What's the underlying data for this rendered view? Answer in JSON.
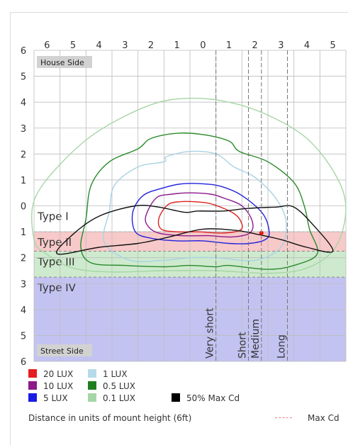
{
  "chart_data": {
    "type": "isolux",
    "x_ticks": [
      "6",
      "5",
      "4",
      "3",
      "2",
      "1",
      "0",
      "1",
      "2",
      "3",
      "4",
      "5"
    ],
    "y_ticks": [
      "6",
      "5",
      "4",
      "3",
      "2",
      "1",
      "0",
      "1",
      "2",
      "3",
      "4",
      "5",
      "6"
    ],
    "xlim": [
      -6,
      6
    ],
    "ylim": [
      -6,
      6
    ],
    "grid": true,
    "house_side_label": "House Side",
    "street_side_label": "Street Side",
    "type_bands": [
      {
        "label": "Type I",
        "from": 0,
        "to": 1,
        "color": ""
      },
      {
        "label": "Type II",
        "from": 1,
        "to": 1.75,
        "color": "#f7c0c0"
      },
      {
        "label": "Type III",
        "from": 1.75,
        "to": 2.75,
        "color": "#c6e6c6"
      },
      {
        "label": "Type IV",
        "from": 2.75,
        "to": 6,
        "color": "#b8b8f0"
      }
    ],
    "length_lines": [
      {
        "label": "Very short",
        "x": 1
      },
      {
        "label": "Short",
        "x": 2.25
      },
      {
        "label": "Medium",
        "x": 2.75
      },
      {
        "label": "Long",
        "x": 3.75
      }
    ],
    "max_cd_point": [
      2.75,
      1.05
    ],
    "series": [
      {
        "name": "0.1 LUX",
        "color": "#a5d6a5",
        "points": [
          [
            -6,
            -0.2
          ],
          [
            -5,
            -1.6
          ],
          [
            -3.5,
            -2.9
          ],
          [
            -1.5,
            -3.9
          ],
          [
            0,
            -4.15
          ],
          [
            1.5,
            -4.0
          ],
          [
            3,
            -3.5
          ],
          [
            4.5,
            -2.6
          ],
          [
            5.6,
            -1.2
          ],
          [
            6,
            0.1
          ],
          [
            5.6,
            1.6
          ],
          [
            4.5,
            2.4
          ],
          [
            3,
            2.6
          ],
          [
            1,
            2.5
          ],
          [
            -1,
            2.5
          ],
          [
            -3,
            2.55
          ],
          [
            -4.5,
            2.4
          ],
          [
            -5.6,
            1.8
          ],
          [
            -6,
            1.3
          ]
        ]
      },
      {
        "name": "0.5 LUX",
        "color": "#2a8a2a",
        "points": [
          [
            -4.2,
            1.6
          ],
          [
            -4,
            0.5
          ],
          [
            -3.8,
            -0.8
          ],
          [
            -3.1,
            -1.7
          ],
          [
            -2,
            -2.2
          ],
          [
            -1.5,
            -2.6
          ],
          [
            -0.5,
            -2.8
          ],
          [
            0.5,
            -2.75
          ],
          [
            1.5,
            -2.5
          ],
          [
            1.9,
            -2.1
          ],
          [
            3,
            -1.7
          ],
          [
            4,
            -0.9
          ],
          [
            4.4,
            0
          ],
          [
            4.6,
            0.9
          ],
          [
            4.9,
            1.85
          ],
          [
            4,
            2.3
          ],
          [
            3,
            2.45
          ],
          [
            1.5,
            2.3
          ],
          [
            1,
            2.35
          ],
          [
            0,
            2.3
          ],
          [
            -1,
            2.35
          ],
          [
            -2.5,
            2.3
          ],
          [
            -3.8,
            2.2
          ]
        ]
      },
      {
        "name": "1 LUX",
        "color": "#a8d2e4",
        "points": [
          [
            -3.3,
            1.4
          ],
          [
            -3.1,
            0.2
          ],
          [
            -2.9,
            -0.8
          ],
          [
            -2,
            -1.5
          ],
          [
            -1,
            -1.7
          ],
          [
            -0.9,
            -1.9
          ],
          [
            0,
            -2.1
          ],
          [
            1,
            -2
          ],
          [
            1.7,
            -1.5
          ],
          [
            2.5,
            -1.1
          ],
          [
            3.3,
            -0.3
          ],
          [
            3.7,
            0.6
          ],
          [
            3.5,
            1.6
          ],
          [
            2.5,
            2.1
          ],
          [
            1,
            2
          ],
          [
            0,
            2
          ],
          [
            -1,
            2.1
          ],
          [
            -2.3,
            2.1
          ]
        ]
      },
      {
        "name": "5 LUX",
        "color": "#2222dd",
        "points": [
          [
            -2.2,
            0.25
          ],
          [
            -1.8,
            -0.4
          ],
          [
            -1,
            -0.7
          ],
          [
            -0.3,
            -0.85
          ],
          [
            0.5,
            -0.85
          ],
          [
            1.2,
            -0.75
          ],
          [
            2,
            -0.4
          ],
          [
            2.8,
            0.3
          ],
          [
            3.05,
            1
          ],
          [
            2.9,
            1.3
          ],
          [
            2.3,
            1.45
          ],
          [
            1.5,
            1.45
          ],
          [
            0.5,
            1.35
          ],
          [
            -0.5,
            1.35
          ],
          [
            -1.5,
            1.25
          ],
          [
            -2.1,
            1
          ]
        ]
      },
      {
        "name": "10 LUX",
        "color": "#8b1a8b",
        "points": [
          [
            -1.7,
            0.4
          ],
          [
            -1.3,
            -0.3
          ],
          [
            -0.7,
            -0.45
          ],
          [
            0,
            -0.5
          ],
          [
            0.8,
            -0.45
          ],
          [
            1.3,
            -0.3
          ],
          [
            2,
            0
          ],
          [
            2.4,
            0.6
          ],
          [
            2.3,
            1.05
          ],
          [
            1.6,
            1.2
          ],
          [
            0.7,
            1.15
          ],
          [
            -0.3,
            1.15
          ],
          [
            -1.2,
            1.05
          ],
          [
            -1.6,
            0.8
          ]
        ]
      },
      {
        "name": "20 LUX",
        "color": "#dd2222",
        "points": [
          [
            -1.2,
            0.5
          ],
          [
            -0.9,
            0
          ],
          [
            -0.5,
            -0.15
          ],
          [
            0.3,
            -0.15
          ],
          [
            0.9,
            -0.05
          ],
          [
            1.7,
            0.3
          ],
          [
            2,
            0.7
          ],
          [
            1.9,
            0.95
          ],
          [
            1.2,
            1.05
          ],
          [
            0.3,
            1
          ],
          [
            -0.5,
            1
          ],
          [
            -1.1,
            0.9
          ]
        ]
      },
      {
        "name": "50% Max Cd",
        "color": "#111111",
        "points": [
          [
            -5.1,
            1.85
          ],
          [
            -4.5,
            1.1
          ],
          [
            -3.5,
            0.4
          ],
          [
            -2.1,
            0
          ],
          [
            -1.2,
            0.05
          ],
          [
            -0.2,
            0.25
          ],
          [
            0.3,
            0.2
          ],
          [
            1.3,
            0.2
          ],
          [
            2.2,
            0.1
          ],
          [
            3.3,
            0.05
          ],
          [
            4,
            0.05
          ],
          [
            4.8,
            0.8
          ],
          [
            5.5,
            1.75
          ],
          [
            4.5,
            1.6
          ],
          [
            3.5,
            1.3
          ],
          [
            2.6,
            1.1
          ],
          [
            1.8,
            0.95
          ],
          [
            0.5,
            0.9
          ],
          [
            -0.8,
            1.2
          ],
          [
            -2,
            1.45
          ],
          [
            -3.5,
            1.6
          ]
        ]
      }
    ]
  },
  "legend": {
    "items": [
      {
        "label": "20 LUX",
        "color": "#e61e1e"
      },
      {
        "label": "1 LUX",
        "color": "#b5dbe8"
      },
      {
        "label": "10 LUX",
        "color": "#8b1a8b"
      },
      {
        "label": "0.5 LUX",
        "color": "#1f7f1f"
      },
      {
        "label": "5 LUX",
        "color": "#1a1ae6"
      },
      {
        "label": "0.1 LUX",
        "color": "#a5d6a5"
      },
      {
        "label": "50% Max Cd",
        "color": "#000000"
      }
    ],
    "note": "Distance in units of mount height (6ft)",
    "max_cd_label": "Max Cd"
  }
}
